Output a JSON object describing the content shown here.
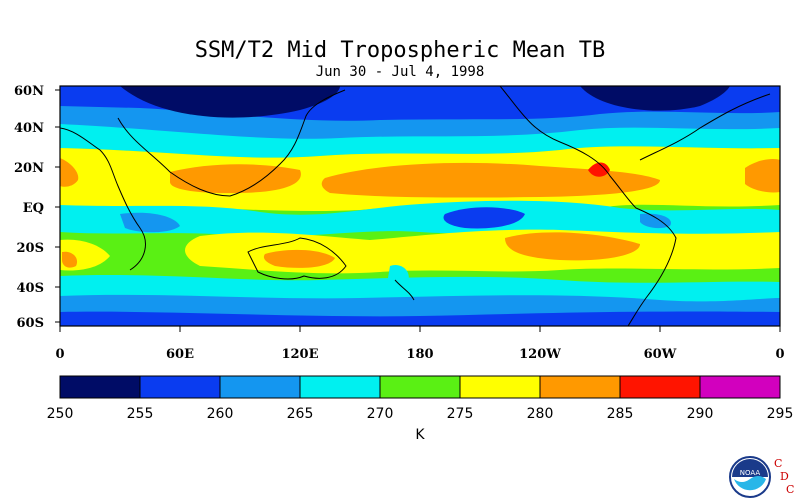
{
  "title": "SSM/T2 Mid Tropospheric Mean TB",
  "subtitle": "Jun 30 - Jul 4, 1998",
  "lat_labels": [
    "60N",
    "40N",
    "20N",
    "EQ",
    "20S",
    "40S",
    "60S"
  ],
  "lon_labels": [
    "0",
    "60E",
    "120E",
    "180",
    "120W",
    "60W",
    "0"
  ],
  "colorbar": {
    "ticks": [
      "250",
      "255",
      "260",
      "265",
      "270",
      "275",
      "280",
      "285",
      "290",
      "295"
    ],
    "colors": [
      "#000c66",
      "#0a3cf0",
      "#1496f0",
      "#00f0f0",
      "#5af014",
      "#ffff00",
      "#ff9900",
      "#ff1400",
      "#d200be"
    ],
    "unit": "K"
  },
  "logo": {
    "name": "NOAA",
    "mark": [
      "C",
      "D",
      "C"
    ]
  },
  "colors": {
    "background": "#ffffff",
    "coast": "#000000"
  }
}
